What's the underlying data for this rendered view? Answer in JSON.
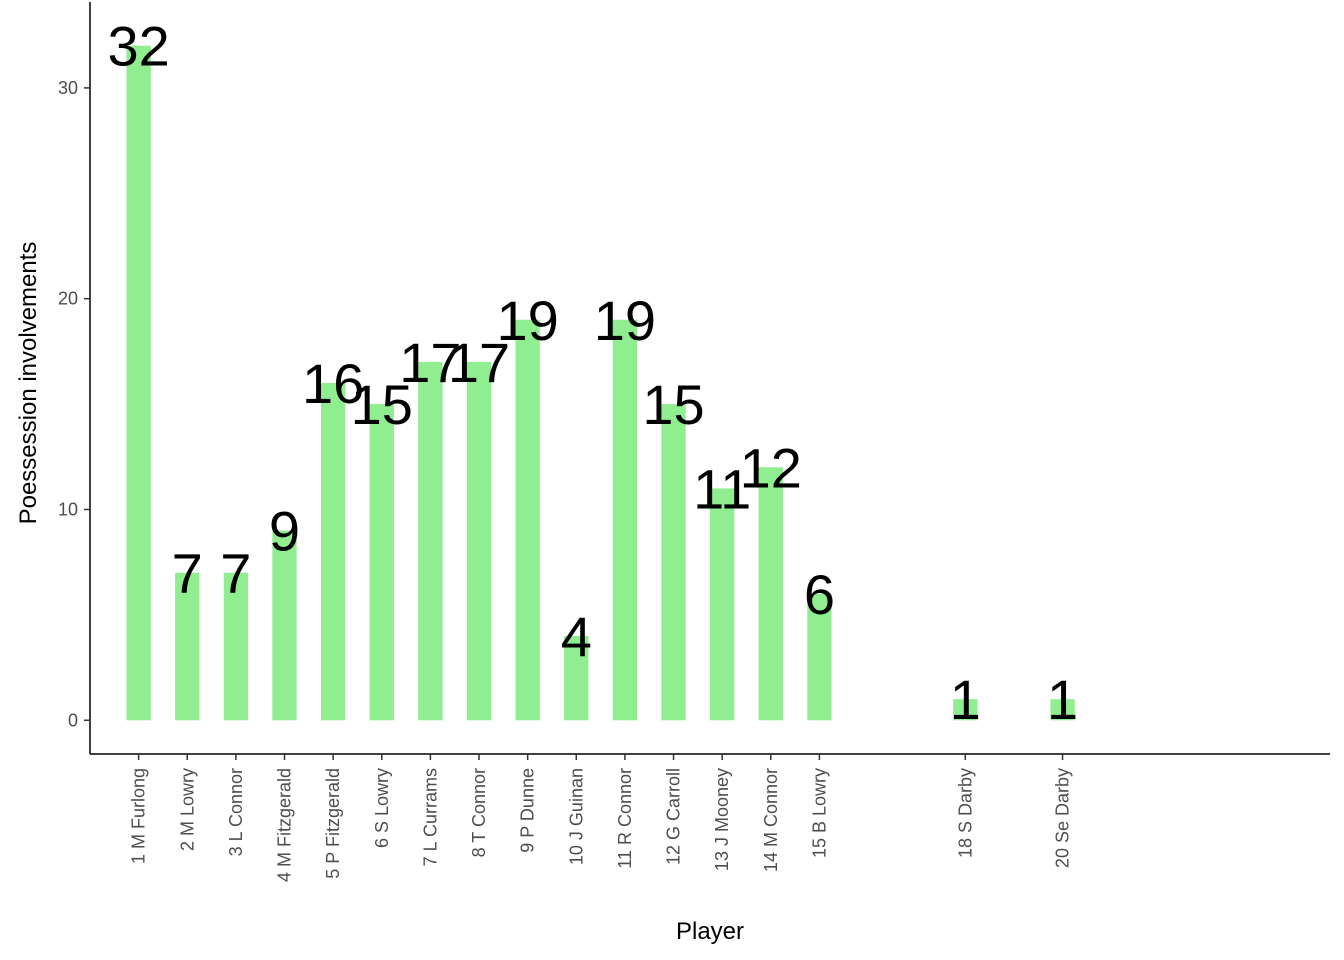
{
  "chart_data": {
    "type": "bar",
    "title": "",
    "xlabel": "Player",
    "ylabel": "Poessession involvements",
    "categories": [
      "1 M Furlong",
      "2 M Lowry",
      "3 L Connor",
      "4 M Fitzgerald",
      "5 P Fitzgerald",
      "6 S Lowry",
      "7 L Currams",
      "8 T Connor",
      "9 P Dunne",
      "10 J Guinan",
      "11 R Connor",
      "12 G Carroll",
      "13 J Mooney",
      "14 M Connor",
      "15 B Lowry",
      "18 S Darby",
      "20 Se Darby"
    ],
    "x_positions": [
      1,
      2,
      3,
      4,
      5,
      6,
      7,
      8,
      9,
      10,
      11,
      12,
      13,
      14,
      15,
      18,
      20
    ],
    "values": [
      32,
      7,
      7,
      9,
      16,
      15,
      17,
      17,
      19,
      4,
      19,
      15,
      11,
      12,
      6,
      1,
      1
    ],
    "data_labels": [
      "32",
      "7",
      "7",
      "9",
      "16",
      "15",
      "17",
      "17",
      "19",
      "4",
      "19",
      "15",
      "11",
      "12",
      "6",
      "1",
      "1"
    ],
    "y_ticks": [
      0,
      10,
      20,
      30
    ],
    "y_tick_labels": [
      "0",
      "10",
      "20",
      "30"
    ],
    "ylim": [
      -1.6,
      33.6
    ],
    "xlim": [
      0.0,
      25.5
    ],
    "bar_color": "#90EE90",
    "grid": false,
    "legend": "none"
  }
}
